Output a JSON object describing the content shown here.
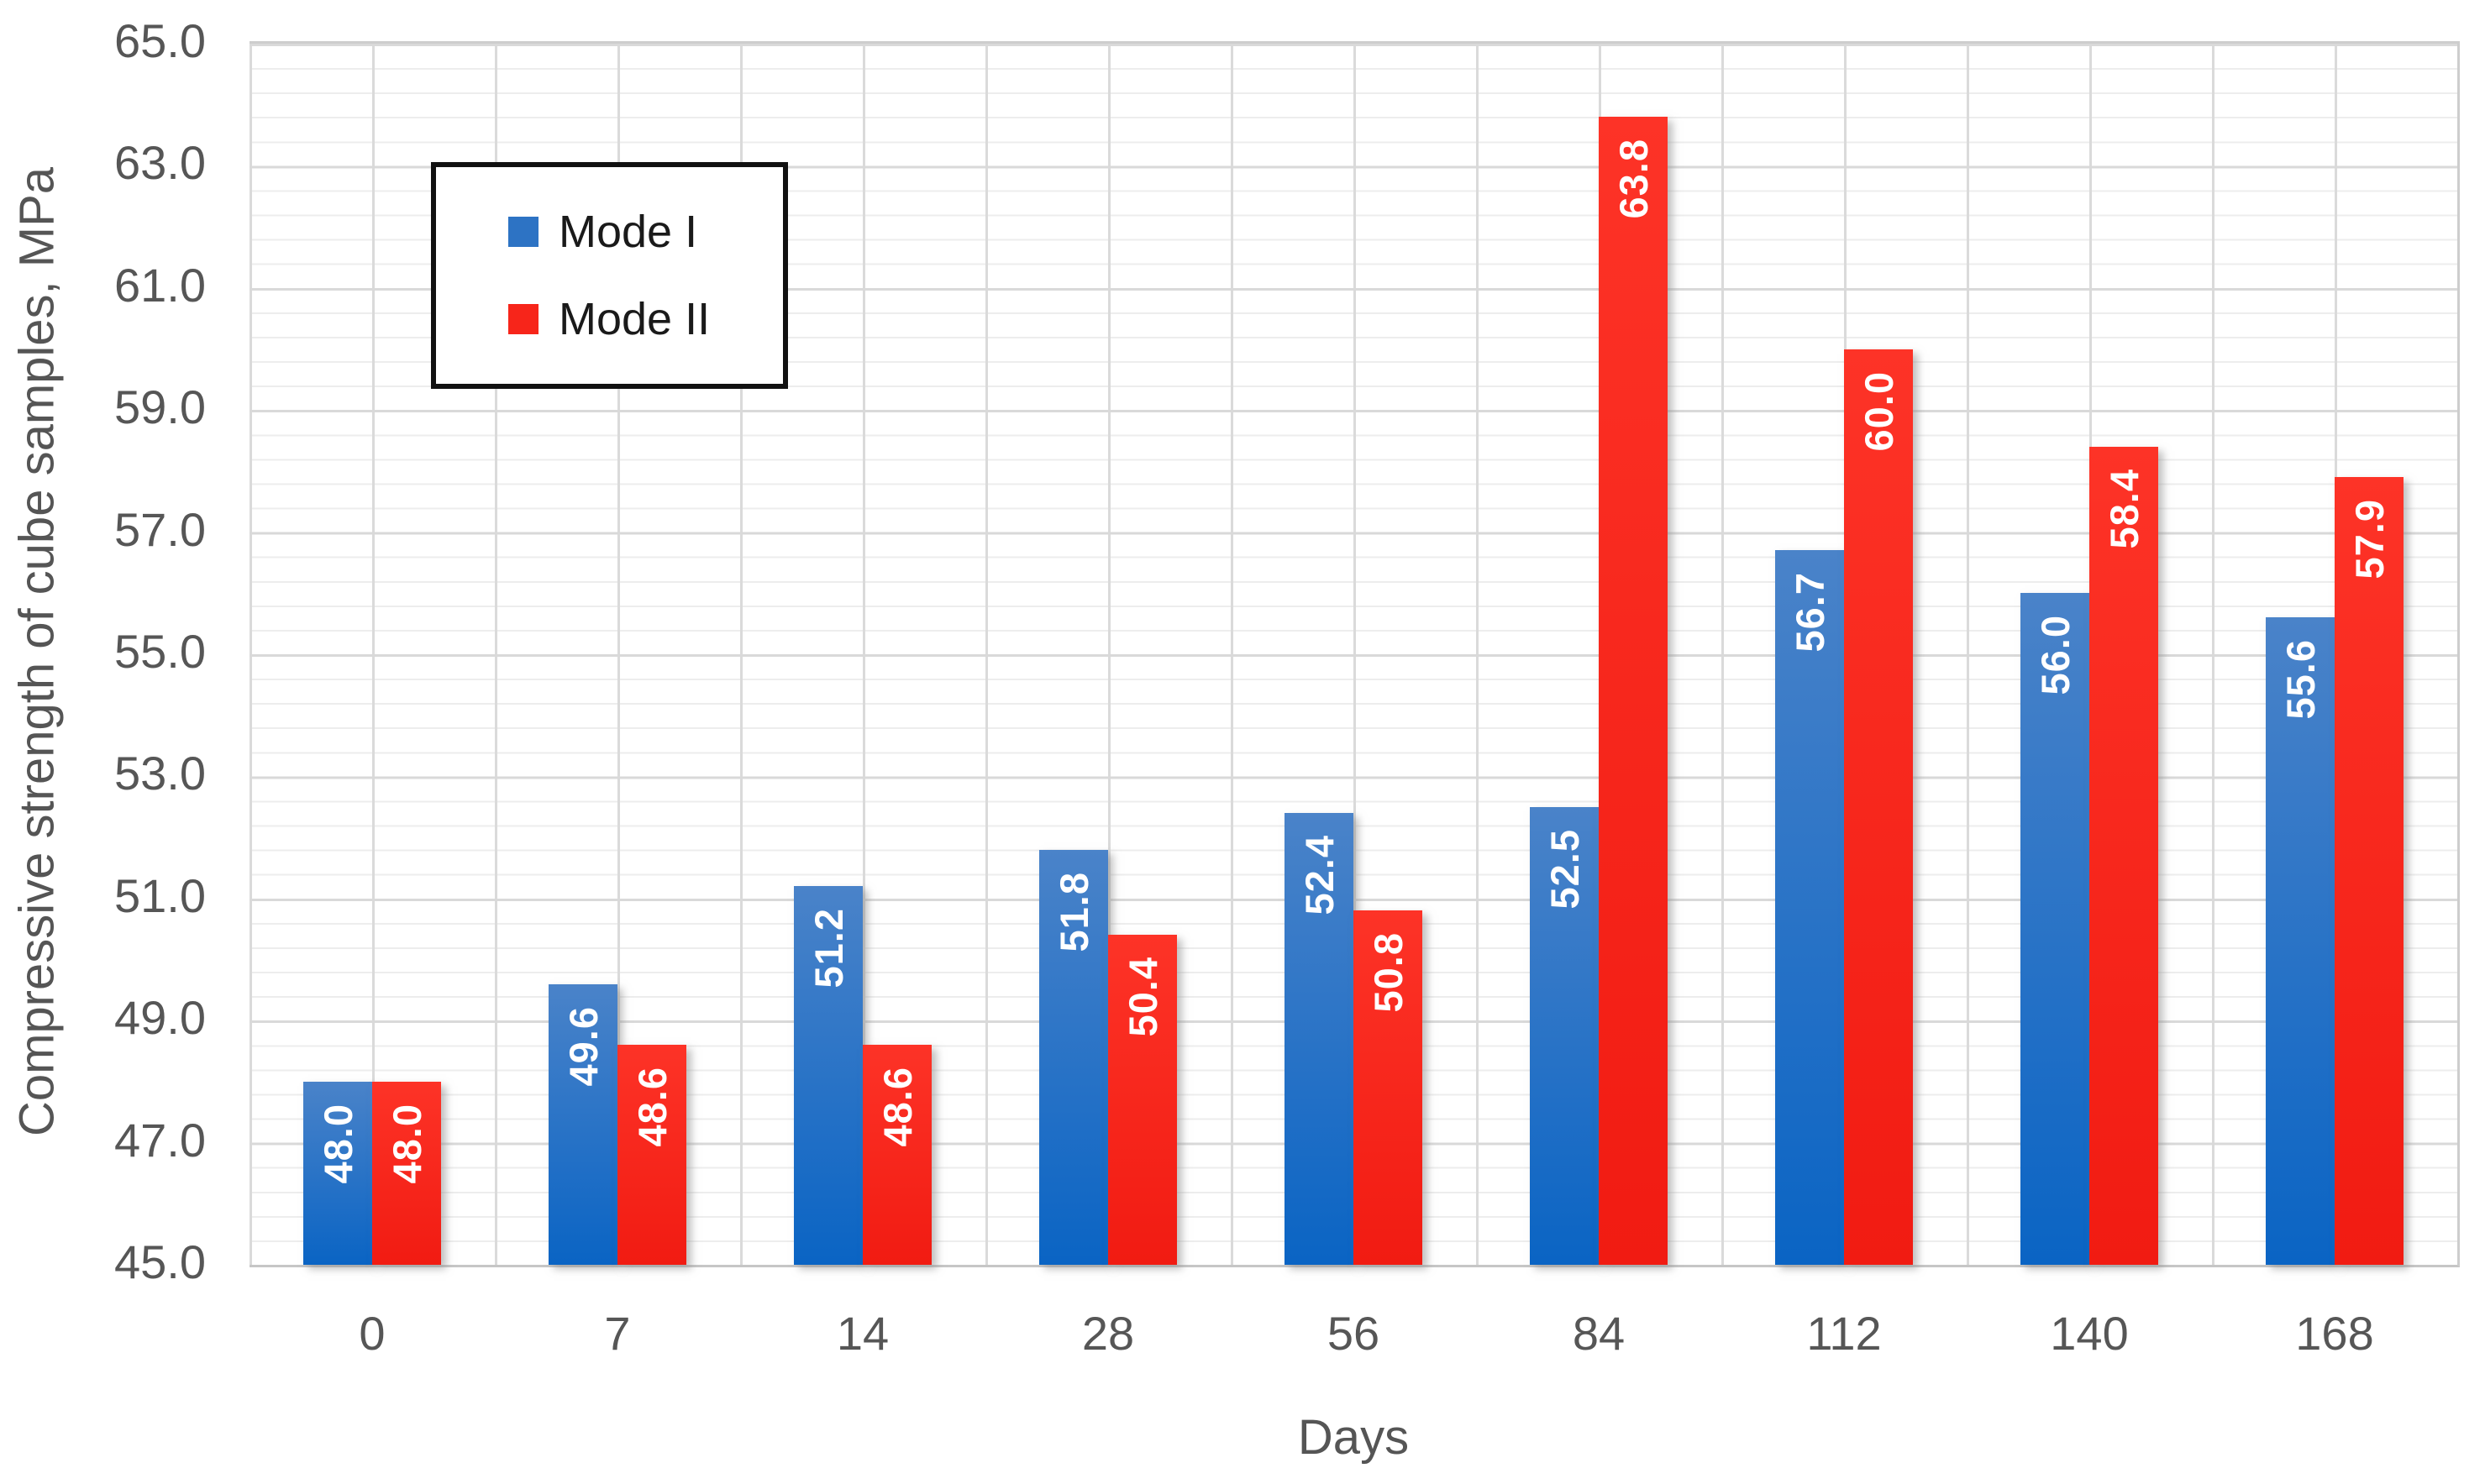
{
  "chart_data": {
    "type": "bar",
    "categories": [
      "0",
      "7",
      "14",
      "28",
      "56",
      "84",
      "112",
      "140",
      "168"
    ],
    "series": [
      {
        "name": "Mode I",
        "values": [
          48.0,
          49.6,
          51.2,
          51.8,
          52.4,
          52.5,
          56.7,
          56.0,
          55.6
        ],
        "color_top": "#4A83C9",
        "color_bottom": "#0A64C4",
        "legend_color": "#2D73C4"
      },
      {
        "name": "Mode II",
        "values": [
          48.0,
          48.6,
          48.6,
          50.4,
          50.8,
          63.8,
          60.0,
          58.4,
          57.9
        ],
        "color_top": "#FD3327",
        "color_bottom": "#F11B12",
        "legend_color": "#F7251A"
      }
    ],
    "xlabel": "Days",
    "ylabel": "Compressive strength of cube samples, MPa",
    "ylim": [
      45.0,
      65.0
    ],
    "y_major_step": 2.0,
    "y_minor_step": 0.4,
    "y_ticks": [
      "65.0",
      "63.0",
      "61.0",
      "59.0",
      "57.0",
      "55.0",
      "53.0",
      "51.0",
      "49.0",
      "47.0",
      "45.0"
    ],
    "data_label_decimals": 1,
    "data_label_color": "#ffffff",
    "axis_text_color": "#565656",
    "grid": true,
    "legend_position": "top-left-inside"
  }
}
